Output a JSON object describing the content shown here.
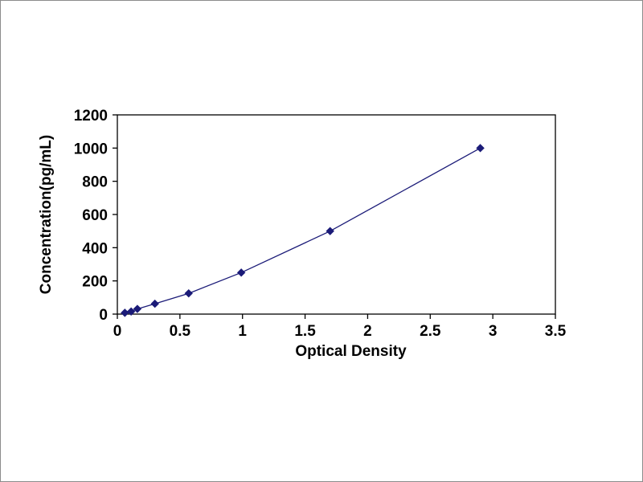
{
  "page": {
    "background": "#ffffff",
    "frame_border_color": "#8c8c8c"
  },
  "chart_data": {
    "type": "line",
    "title": "",
    "xlabel": "Optical Density",
    "ylabel": "Concentration(pg/mL)",
    "xlim": [
      0,
      3.5
    ],
    "ylim": [
      0,
      1200
    ],
    "x_ticks": [
      0,
      0.5,
      1,
      1.5,
      2,
      2.5,
      3,
      3.5
    ],
    "y_ticks": [
      0,
      200,
      400,
      600,
      800,
      1000,
      1200
    ],
    "grid": false,
    "legend": false,
    "plot_border_color": "#000000",
    "series": [
      {
        "name": "standard-curve",
        "marker": "diamond",
        "color": "#1b1b78",
        "x": [
          0.06,
          0.11,
          0.16,
          0.3,
          0.57,
          0.99,
          1.7,
          2.9
        ],
        "y": [
          7.8,
          15.6,
          31.2,
          62.5,
          125,
          250,
          500,
          1000
        ]
      }
    ]
  }
}
